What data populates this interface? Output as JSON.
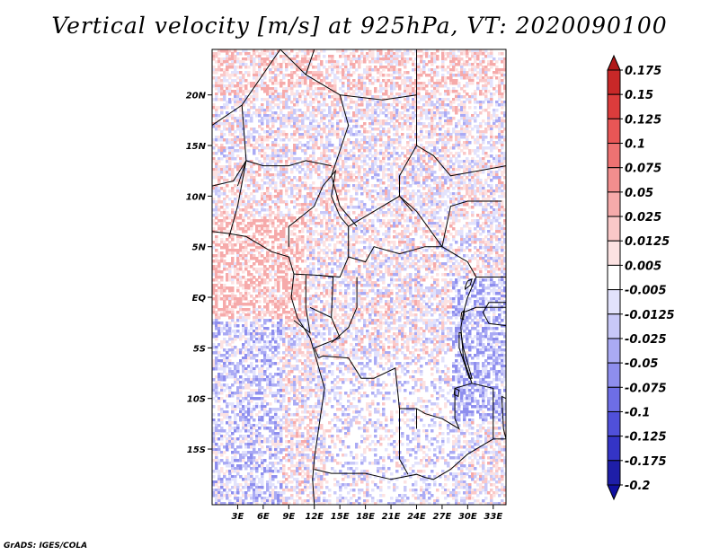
{
  "title": "Vertical velocity [m/s] at 925hPa, VT: 2020090100",
  "credit": "GrADS: IGES/COLA",
  "map": {
    "lat_range": [
      -20.5,
      24.5
    ],
    "lon_range": [
      0,
      34.5
    ],
    "lat_ticks": [
      {
        "value": 20,
        "label": "20N"
      },
      {
        "value": 15,
        "label": "15N"
      },
      {
        "value": 10,
        "label": "10N"
      },
      {
        "value": 5,
        "label": "5N"
      },
      {
        "value": 0,
        "label": "EQ"
      },
      {
        "value": -5,
        "label": "5S"
      },
      {
        "value": -10,
        "label": "10S"
      },
      {
        "value": -15,
        "label": "15S"
      }
    ],
    "lon_ticks": [
      {
        "value": 3,
        "label": "3E"
      },
      {
        "value": 6,
        "label": "6E"
      },
      {
        "value": 9,
        "label": "9E"
      },
      {
        "value": 12,
        "label": "12E"
      },
      {
        "value": 15,
        "label": "15E"
      },
      {
        "value": 18,
        "label": "18E"
      },
      {
        "value": 21,
        "label": "21E"
      },
      {
        "value": 24,
        "label": "24E"
      },
      {
        "value": 27,
        "label": "27E"
      },
      {
        "value": 30,
        "label": "30E"
      },
      {
        "value": 33,
        "label": "33E"
      }
    ]
  },
  "colorbar": {
    "levels": [
      "0.175",
      "0.15",
      "0.125",
      "0.1",
      "0.075",
      "0.05",
      "0.025",
      "0.0125",
      "0.005",
      "-0.005",
      "-0.0125",
      "-0.025",
      "-0.05",
      "-0.075",
      "-0.1",
      "-0.125",
      "-0.175",
      "-0.2"
    ],
    "colors": [
      "#b01818",
      "#c82828",
      "#dc3c3c",
      "#e85656",
      "#ee7272",
      "#f28e8e",
      "#f6aaaa",
      "#fac8c8",
      "#fce2e2",
      "#ffffff",
      "#e2e2fc",
      "#c8c8f8",
      "#aaaaf4",
      "#8e8eee",
      "#6e6ee6",
      "#5050da",
      "#3434c6",
      "#1e1ea8",
      "#1010a0"
    ]
  }
}
